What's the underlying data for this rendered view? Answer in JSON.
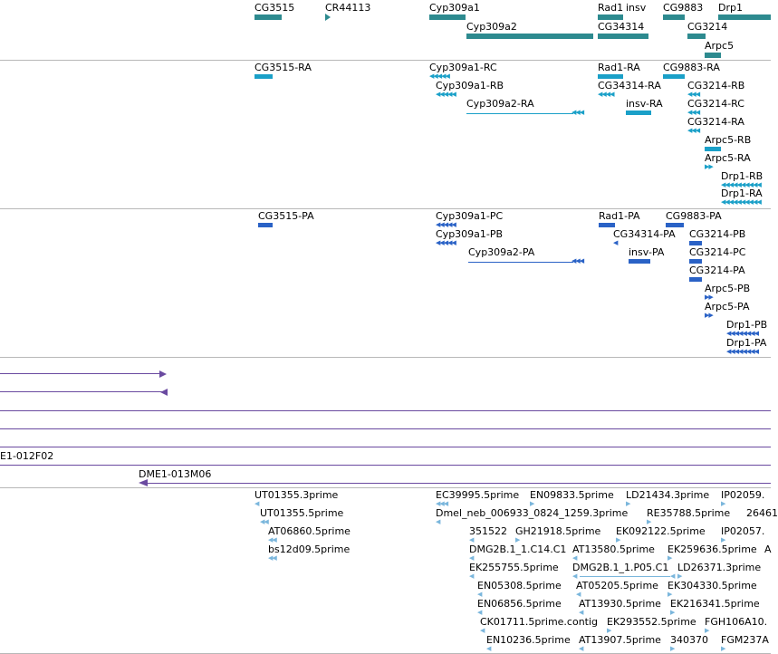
{
  "colors": {
    "gene": "#2d8a8f",
    "transcript": "#1aa0c8",
    "peptide": "#2a62c6",
    "bac": "#6a4aa0",
    "est": "#7ab6dc",
    "separator": "#b8b8b8"
  },
  "genes": {
    "labels": {
      "cg3515": "CG3515",
      "cr44113": "CR44113",
      "cyp309a1": "Cyp309a1",
      "cyp309a2": "Cyp309a2",
      "rad1": "Rad1",
      "insv": "insv",
      "cg34314": "CG34314",
      "cg9883": "CG9883",
      "cg3214": "CG3214",
      "drp1": "Drp1",
      "arpc5": "Arpc5"
    }
  },
  "transcripts": {
    "labels": {
      "cg3515_ra": "CG3515-RA",
      "cyp309a1_rc": "Cyp309a1-RC",
      "cyp309a1_rb": "Cyp309a1-RB",
      "cyp309a2_ra": "Cyp309a2-RA",
      "rad1_ra": "Rad1-RA",
      "cg34314_ra": "CG34314-RA",
      "insv_ra": "insv-RA",
      "cg9883_ra": "CG9883-RA",
      "cg3214_rb": "CG3214-RB",
      "cg3214_rc": "CG3214-RC",
      "cg3214_ra": "CG3214-RA",
      "arpc5_rb": "Arpc5-RB",
      "arpc5_ra": "Arpc5-RA",
      "drp1_rb": "Drp1-RB",
      "drp1_ra": "Drp1-RA"
    }
  },
  "peptides": {
    "labels": {
      "cg3515_pa": "CG3515-PA",
      "cyp309a1_pc": "Cyp309a1-PC",
      "cyp309a1_pb": "Cyp309a1-PB",
      "cyp309a2_pa": "Cyp309a2-PA",
      "rad1_pa": "Rad1-PA",
      "cg34314_pa": "CG34314-PA",
      "insv_pa": "insv-PA",
      "cg9883_pa": "CG9883-PA",
      "cg3214_pb": "CG3214-PB",
      "cg3214_pc": "CG3214-PC",
      "cg3214_pa": "CG3214-PA",
      "arpc5_pb": "Arpc5-PB",
      "arpc5_pa": "Arpc5-PA",
      "drp1_pb": "Drp1-PB",
      "drp1_pa": "Drp1-PA"
    }
  },
  "bacs": {
    "labels": {
      "e1_012f02": "E1-012F02",
      "dme1_013m06": "DME1-013M06"
    }
  },
  "ests": {
    "labels": {
      "ut01355_3prime": "UT01355.3prime",
      "ut01355_5prime": "UT01355.5prime",
      "at06860_5prime": "AT06860.5prime",
      "bs12d09_5prime": "bs12d09.5prime",
      "ec39995_5prime": "EC39995.5prime",
      "en09833_5prime": "EN09833.5prime",
      "ld21434_3prime": "LD21434.3prime",
      "ip02059": "IP02059.",
      "dmel_neb": "Dmel_neb_006933_0824_1259.3prime",
      "re35788_5prime": "RE35788.5prime",
      "x26461": "26461",
      "x351522": "351522",
      "gh21918_5prime": "GH21918.5prime",
      "ek092122_5prime": "EK092122.5prime",
      "ip02057": "IP02057.",
      "dmg2b_c14": "DMG2B.1_1.C14.C1",
      "at13580_5prime": "AT13580.5prime",
      "ek259636_5prime": "EK259636.5prime",
      "a_trunc": "A",
      "ek255755_5prime": "EK255755.5prime",
      "dmg2b_p05": "DMG2B.1_1.P05.C1",
      "ld26371_3prime": "LD26371.3prime",
      "en05308_5prime": "EN05308.5prime",
      "at05205_5prime": "AT05205.5prime",
      "ek304330_5prime": "EK304330.5prime",
      "en06856_5prime": "EN06856.5prime",
      "at13930_5prime": "AT13930.5prime",
      "ek216341_5prime": "EK216341.5prime",
      "ck01711_5prime": "CK01711.5prime.contig",
      "ek293552_5prime": "EK293552.5prime",
      "fgh106a10": "FGH106A10.",
      "en10236_5prime": "EN10236.5prime",
      "at13907_5prime": "AT13907.5prime",
      "x340370": "340370",
      "fgm237a": "FGM237A"
    }
  }
}
